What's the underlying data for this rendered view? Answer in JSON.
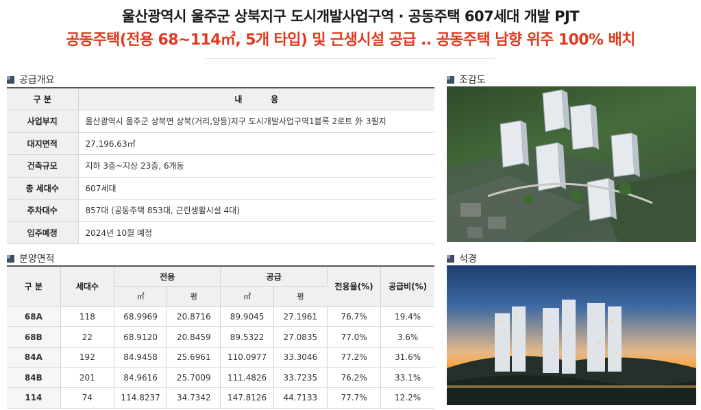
{
  "header": {
    "title": "울산광역시 울주군 상북지구 도시개발사업구역 · 공동주택 607세대 개발 PJT",
    "subtitle": "공동주택(전용 68~114㎡, 5개 타입) 및 근생시설 공급 .. 공동주택 남향 위주 100% 배치"
  },
  "supply_section": {
    "title": "공급개요",
    "head_label": "구 분",
    "head_value": "내          용",
    "rows": [
      {
        "label": "사업부지",
        "value": "울산광역시 울주군 상북면 상북(거리,양등)지구 도시개발사업구역1블록 2로트 外 3필지"
      },
      {
        "label": "대지면적",
        "value": "27,196.63㎡"
      },
      {
        "label": "건축규모",
        "value": "지하 3층~지상 23층, 6개동"
      },
      {
        "label": "총 세대수",
        "value": "607세대"
      },
      {
        "label": "주차대수",
        "value": "857대 (공동주택 853대, 근린생활시설 4대)"
      },
      {
        "label": "입주예정",
        "value": "2024년 10월 예정"
      }
    ]
  },
  "area_section": {
    "title": "분양면적",
    "headers": {
      "type": "구 분",
      "units": "세대수",
      "exclusive": "전용",
      "supply": "공급",
      "exclusive_ratio": "전용율(%)",
      "supply_ratio": "공급비(%)",
      "sqm": "㎡",
      "pyeong": "평"
    },
    "rows": [
      {
        "type": "68A",
        "units": "118",
        "ex_sqm": "68.9969",
        "ex_py": "20.8716",
        "sp_sqm": "89.9045",
        "sp_py": "27.1961",
        "ex_ratio": "76.7%",
        "sp_ratio": "19.4%"
      },
      {
        "type": "68B",
        "units": "22",
        "ex_sqm": "68.9120",
        "ex_py": "20.8459",
        "sp_sqm": "89.5322",
        "sp_py": "27.0835",
        "ex_ratio": "77.0%",
        "sp_ratio": "3.6%"
      },
      {
        "type": "84A",
        "units": "192",
        "ex_sqm": "84.9458",
        "ex_py": "25.6961",
        "sp_sqm": "110.0977",
        "sp_py": "33.3046",
        "ex_ratio": "77.2%",
        "sp_ratio": "31.6%"
      },
      {
        "type": "84B",
        "units": "201",
        "ex_sqm": "84.9616",
        "ex_py": "25.7009",
        "sp_sqm": "111.4826",
        "sp_py": "33.7235",
        "ex_ratio": "76.2%",
        "sp_ratio": "33.1%"
      },
      {
        "type": "114",
        "units": "74",
        "ex_sqm": "114.8237",
        "ex_py": "34.7342",
        "sp_sqm": "147.8126",
        "sp_py": "44.7133",
        "ex_ratio": "77.7%",
        "sp_ratio": "12.2%"
      }
    ]
  },
  "images": {
    "aerial_title": "조감도",
    "night_title": "석경"
  },
  "colors": {
    "subtitle_red": "#e03a1e",
    "header_bar": "#555555",
    "cell_label_bg": "#f0f0f0"
  }
}
